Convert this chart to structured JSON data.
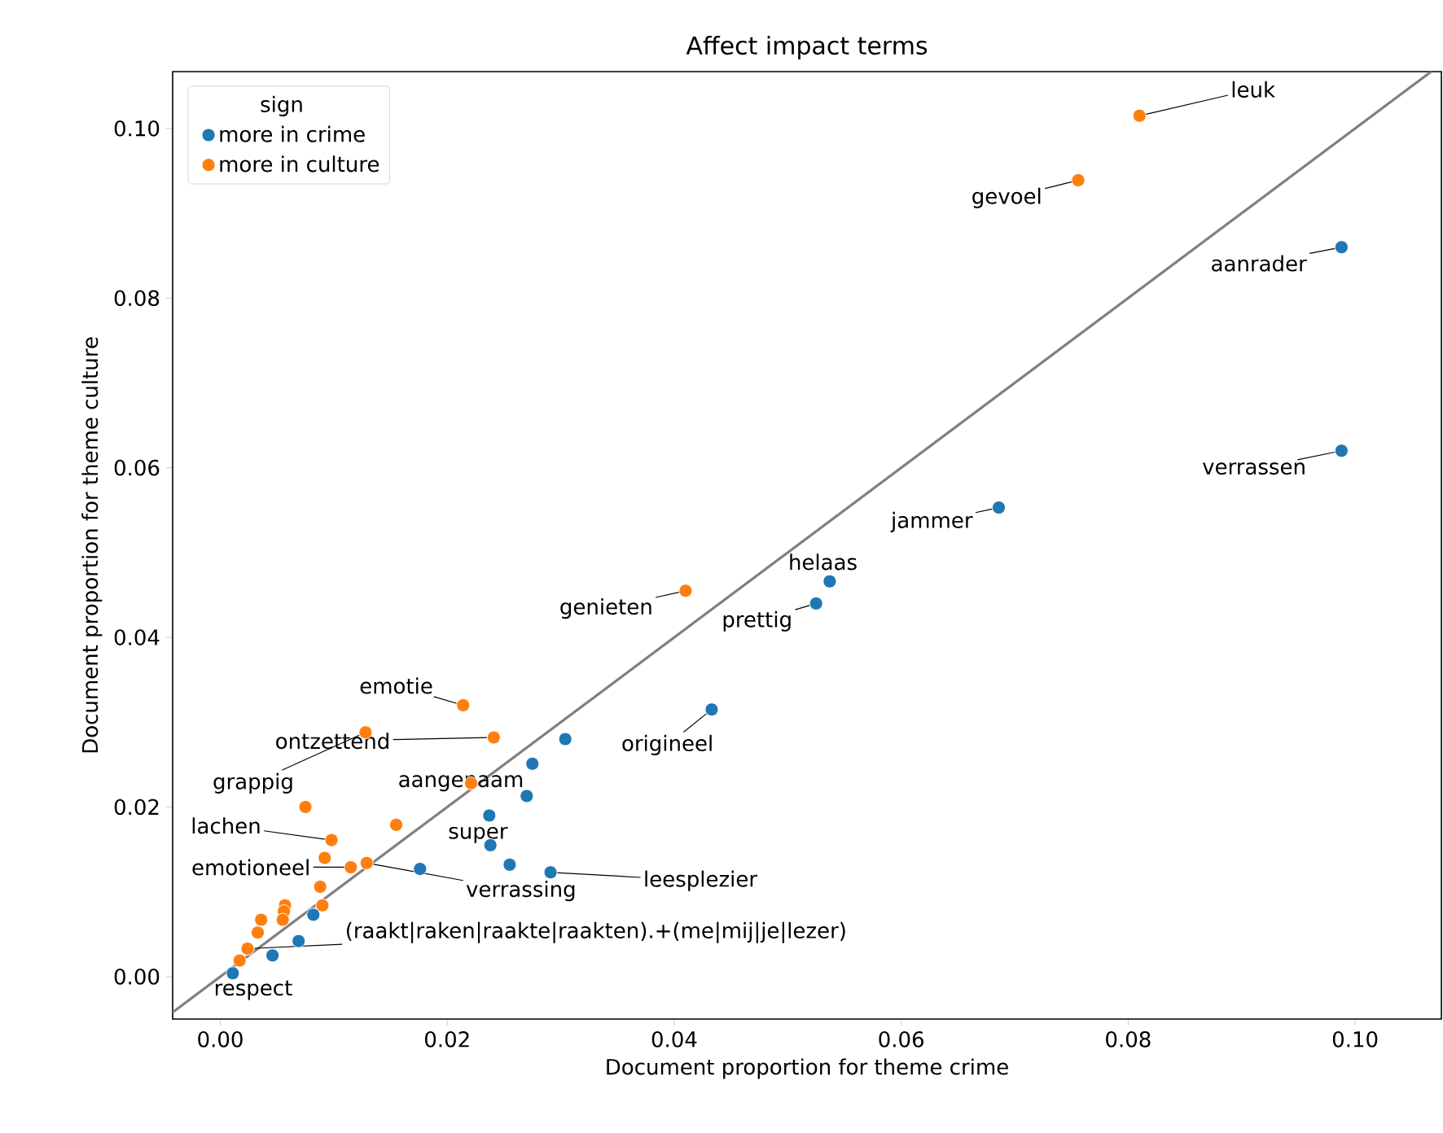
{
  "chart_data": {
    "type": "scatter",
    "title": "Affect impact terms",
    "xlabel": "Document proportion for theme crime",
    "ylabel": "Document proportion for theme culture",
    "legend_title": "sign",
    "legend": "top left",
    "xlim": [
      -0.0042,
      0.1076
    ],
    "ylim": [
      -0.005,
      0.1067
    ],
    "xticks": [
      {
        "value": 0,
        "label": "0.00"
      },
      {
        "value": 0.02,
        "label": "0.02"
      },
      {
        "value": 0.04,
        "label": "0.04"
      },
      {
        "value": 0.06,
        "label": "0.06"
      },
      {
        "value": 0.08,
        "label": "0.08"
      },
      {
        "value": 0.1,
        "label": "0.10"
      }
    ],
    "yticks": [
      {
        "value": 0,
        "label": "0.00"
      },
      {
        "value": 0.02,
        "label": "0.02"
      },
      {
        "value": 0.04,
        "label": "0.04"
      },
      {
        "value": 0.06,
        "label": "0.06"
      },
      {
        "value": 0.08,
        "label": "0.08"
      },
      {
        "value": 0.1,
        "label": "0.10"
      }
    ],
    "series": [
      {
        "name": "more in crime",
        "marker": "circle",
        "color": "#1f77b4",
        "x": [
          0.0988,
          0.0988,
          0.0686,
          0.0537,
          0.0525,
          0.0433,
          0.0304,
          0.0275,
          0.027,
          0.0237,
          0.0238,
          0.0255,
          0.0291,
          0.0176,
          0.0082,
          0.0069,
          0.0046,
          0.0011
        ],
        "values": [
          0.086,
          0.062,
          0.0553,
          0.0466,
          0.044,
          0.0315,
          0.028,
          0.0251,
          0.0213,
          0.019,
          0.0155,
          0.0132,
          0.0123,
          0.0127,
          0.0073,
          0.0042,
          0.0025,
          0.0004
        ]
      },
      {
        "name": "more in culture",
        "marker": "circle",
        "color": "#ff7f0e",
        "x": [
          0.081,
          0.0756,
          0.041,
          0.0214,
          0.0241,
          0.0128,
          0.0221,
          0.0155,
          0.0075,
          0.0098,
          0.0092,
          0.0129,
          0.0115,
          0.0088,
          0.009,
          0.0057,
          0.0056,
          0.0055,
          0.0036,
          0.0033,
          0.0024,
          0.0017
        ],
        "values": [
          0.1015,
          0.0939,
          0.0455,
          0.032,
          0.0282,
          0.0288,
          0.0228,
          0.0179,
          0.02,
          0.0161,
          0.014,
          0.0134,
          0.0129,
          0.0106,
          0.0084,
          0.0084,
          0.0077,
          0.0067,
          0.0067,
          0.0052,
          0.0033,
          0.0019
        ]
      },
      {
        "type": "line",
        "marker": "none",
        "color": "#808080",
        "x": [
          -0.0042,
          0.1067
        ],
        "values": [
          -0.0042,
          0.1067
        ]
      }
    ],
    "annotations": [
      {
        "text": "leuk",
        "x": 0.081,
        "y": 0.1015
      },
      {
        "text": "gevoel",
        "x": 0.0756,
        "y": 0.0939
      },
      {
        "text": "aanrader",
        "x": 0.0988,
        "y": 0.086
      },
      {
        "text": "verrassen",
        "x": 0.0988,
        "y": 0.062
      },
      {
        "text": "jammer",
        "x": 0.0686,
        "y": 0.0553
      },
      {
        "text": "helaas",
        "x": 0.0537,
        "y": 0.0466
      },
      {
        "text": "prettig",
        "x": 0.0525,
        "y": 0.044
      },
      {
        "text": "genieten",
        "x": 0.041,
        "y": 0.0455
      },
      {
        "text": "origineel",
        "x": 0.0433,
        "y": 0.0315
      },
      {
        "text": "emotie",
        "x": 0.0214,
        "y": 0.032
      },
      {
        "text": "ontzettend",
        "x": 0.0241,
        "y": 0.0282
      },
      {
        "text": "aangenaam",
        "x": 0.0221,
        "y": 0.0228
      },
      {
        "text": "grappig",
        "x": 0.0128,
        "y": 0.0288
      },
      {
        "text": "lachen",
        "x": 0.0098,
        "y": 0.0161
      },
      {
        "text": "super",
        "x": 0.0238,
        "y": 0.0155
      },
      {
        "text": "leesplezier",
        "x": 0.0291,
        "y": 0.0123
      },
      {
        "text": "emotioneel",
        "x": 0.0115,
        "y": 0.0129
      },
      {
        "text": "verrassing",
        "x": 0.0129,
        "y": 0.0134
      },
      {
        "text": "(raakt|raken|raakte|raakten).+(me|mij|je|lezer)",
        "x": 0.0024,
        "y": 0.0033
      },
      {
        "text": "respect",
        "x": 0.0011,
        "y": 0.0004
      }
    ]
  }
}
